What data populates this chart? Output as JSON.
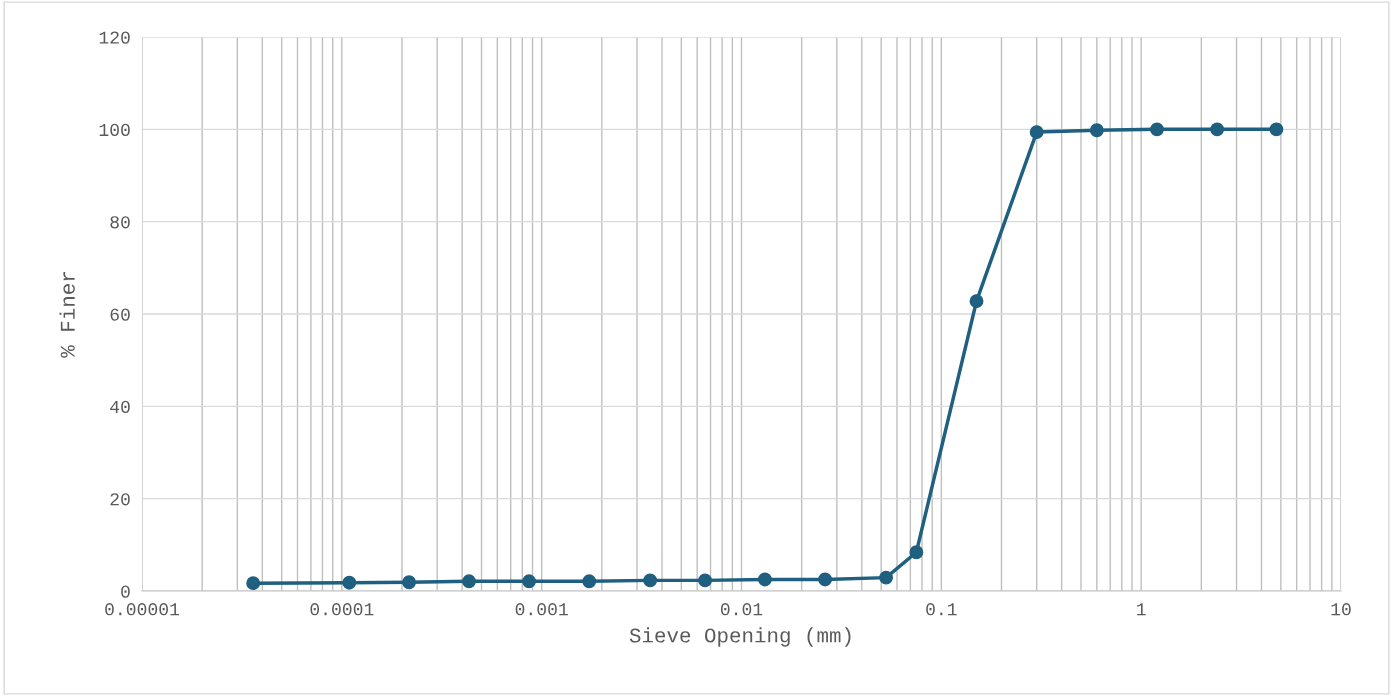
{
  "chart_data": {
    "type": "line",
    "xlabel": "Sieve Opening (mm)",
    "ylabel": "% Finer",
    "log": "x",
    "x": [
      3.6e-05,
      0.000109,
      0.000217,
      0.000433,
      0.000865,
      0.00173,
      0.00349,
      0.00657,
      0.0131,
      0.0262,
      0.0529,
      0.075,
      0.15,
      0.3,
      0.6,
      1.2,
      2.4,
      4.75
    ],
    "series": [
      {
        "color": "#1f5f7f",
        "values": [
          1.7,
          1.8,
          1.9,
          2.1,
          2.1,
          2.1,
          2.3,
          2.3,
          2.5,
          2.5,
          2.9,
          8.4,
          62.8,
          99.4,
          99.8,
          100,
          100,
          100
        ]
      }
    ],
    "xlim": [
      1e-05,
      10
    ],
    "xticks": [
      {
        "value": 1e-05,
        "label": "0.00001"
      },
      {
        "value": 0.0001,
        "label": "0.0001"
      },
      {
        "value": 0.001,
        "label": "0.001"
      },
      {
        "value": 0.01,
        "label": "0.01"
      },
      {
        "value": 0.1,
        "label": "0.1"
      },
      1,
      10
    ],
    "ylim": [
      0,
      120
    ],
    "yticks": [
      0,
      20,
      40,
      60,
      80,
      100,
      120
    ],
    "grid": true,
    "legend": false,
    "marker": "circle",
    "line_style": "solid"
  }
}
